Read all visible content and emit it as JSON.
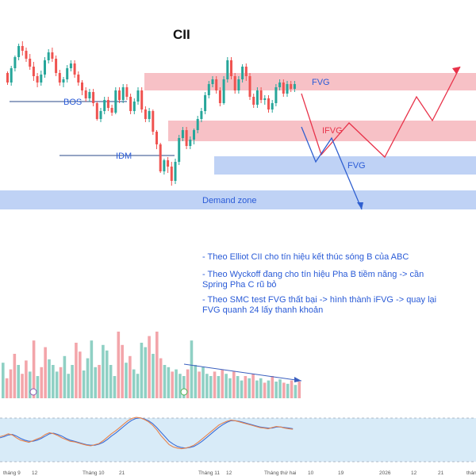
{
  "chart_data": {
    "type": "candlestick",
    "title": "CII",
    "colors": {
      "up": "#26a69a",
      "down": "#ef5350",
      "fvg_fill": "#f6b6bc",
      "demand_fill": "#b8cdf4",
      "annotation": "#2a5bd7",
      "wave": "#e8334a",
      "projection": "#2f5fd0",
      "k_line": "#e8834a",
      "d_line": "#3a6ed8",
      "oscillator_band": "#d8ebf8"
    },
    "candles": [
      [
        208,
        196,
        210,
        193
      ],
      [
        196,
        214,
        217,
        192
      ],
      [
        214,
        228,
        230,
        210
      ],
      [
        228,
        242,
        245,
        224
      ],
      [
        242,
        236,
        248,
        230
      ],
      [
        236,
        226,
        240,
        222
      ],
      [
        226,
        216,
        232,
        212
      ],
      [
        216,
        204,
        222,
        198
      ],
      [
        204,
        196,
        208,
        190
      ],
      [
        196,
        206,
        211,
        192
      ],
      [
        206,
        224,
        228,
        202
      ],
      [
        224,
        234,
        238,
        220
      ],
      [
        234,
        226,
        240,
        222
      ],
      [
        226,
        208,
        230,
        204
      ],
      [
        208,
        196,
        212,
        192
      ],
      [
        196,
        200,
        203,
        190
      ],
      [
        200,
        214,
        218,
        196
      ],
      [
        214,
        220,
        224,
        210
      ],
      [
        220,
        206,
        224,
        202
      ],
      [
        206,
        196,
        210,
        192
      ],
      [
        196,
        186,
        199,
        180
      ],
      [
        186,
        176,
        190,
        172
      ],
      [
        176,
        184,
        188,
        172
      ],
      [
        184,
        170,
        188,
        166
      ],
      [
        170,
        150,
        172,
        148
      ],
      [
        150,
        160,
        164,
        146
      ],
      [
        160,
        174,
        178,
        156
      ],
      [
        174,
        164,
        178,
        160
      ],
      [
        164,
        158,
        168,
        154
      ],
      [
        158,
        186,
        190,
        156
      ],
      [
        186,
        174,
        190,
        170
      ],
      [
        174,
        190,
        194,
        170
      ],
      [
        190,
        178,
        194,
        174
      ],
      [
        178,
        160,
        182,
        156
      ],
      [
        160,
        172,
        176,
        156
      ],
      [
        172,
        186,
        190,
        168
      ],
      [
        186,
        162,
        190,
        158
      ],
      [
        162,
        150,
        166,
        146
      ],
      [
        150,
        160,
        164,
        146
      ],
      [
        160,
        134,
        162,
        130
      ],
      [
        134,
        118,
        136,
        112
      ],
      [
        118,
        84,
        120,
        82
      ],
      [
        84,
        98,
        100,
        80
      ],
      [
        98,
        90,
        102,
        82
      ],
      [
        90,
        72,
        96,
        66
      ],
      [
        72,
        96,
        100,
        68
      ],
      [
        96,
        126,
        130,
        92
      ],
      [
        126,
        136,
        140,
        122
      ],
      [
        136,
        116,
        140,
        112
      ],
      [
        116,
        124,
        128,
        112
      ],
      [
        124,
        136,
        138,
        118
      ],
      [
        136,
        150,
        154,
        132
      ],
      [
        150,
        160,
        164,
        146
      ],
      [
        160,
        180,
        184,
        156
      ],
      [
        180,
        194,
        198,
        176
      ],
      [
        194,
        200,
        204,
        190
      ],
      [
        200,
        186,
        204,
        182
      ],
      [
        186,
        170,
        190,
        166
      ],
      [
        170,
        200,
        204,
        168
      ],
      [
        200,
        224,
        228,
        196
      ],
      [
        224,
        204,
        228,
        200
      ],
      [
        204,
        186,
        208,
        182
      ],
      [
        186,
        200,
        204,
        182
      ],
      [
        200,
        216,
        219,
        196
      ],
      [
        216,
        204,
        220,
        198
      ],
      [
        204,
        178,
        208,
        174
      ],
      [
        178,
        168,
        182,
        164
      ],
      [
        168,
        186,
        190,
        164
      ],
      [
        186,
        174,
        190,
        170
      ],
      [
        174,
        176,
        180,
        168
      ],
      [
        176,
        162,
        180,
        158
      ],
      [
        162,
        170,
        174,
        158
      ],
      [
        170,
        190,
        194,
        166
      ],
      [
        190,
        196,
        200,
        186
      ],
      [
        196,
        182,
        200,
        178
      ],
      [
        182,
        194,
        198,
        178
      ],
      [
        194,
        188,
        198,
        184
      ],
      [
        188,
        194,
        198,
        184
      ]
    ],
    "volume": [
      [
        320,
        "up"
      ],
      [
        180,
        "down"
      ],
      [
        260,
        "down"
      ],
      [
        400,
        "down"
      ],
      [
        300,
        "up"
      ],
      [
        220,
        "down"
      ],
      [
        340,
        "down"
      ],
      [
        240,
        "up"
      ],
      [
        520,
        "down"
      ],
      [
        200,
        "up"
      ],
      [
        280,
        "down"
      ],
      [
        460,
        "down"
      ],
      [
        350,
        "up"
      ],
      [
        300,
        "up"
      ],
      [
        240,
        "up"
      ],
      [
        280,
        "down"
      ],
      [
        380,
        "up"
      ],
      [
        220,
        "up"
      ],
      [
        300,
        "up"
      ],
      [
        500,
        "down"
      ],
      [
        420,
        "down"
      ],
      [
        250,
        "up"
      ],
      [
        360,
        "up"
      ],
      [
        520,
        "up"
      ],
      [
        280,
        "up"
      ],
      [
        300,
        "down"
      ],
      [
        480,
        "up"
      ],
      [
        430,
        "up"
      ],
      [
        300,
        "up"
      ],
      [
        200,
        "up"
      ],
      [
        600,
        "down"
      ],
      [
        480,
        "down"
      ],
      [
        320,
        "up"
      ],
      [
        380,
        "down"
      ],
      [
        260,
        "up"
      ],
      [
        220,
        "up"
      ],
      [
        500,
        "up"
      ],
      [
        460,
        "up"
      ],
      [
        560,
        "down"
      ],
      [
        400,
        "up"
      ],
      [
        600,
        "down"
      ],
      [
        360,
        "down"
      ],
      [
        300,
        "up"
      ],
      [
        280,
        "up"
      ],
      [
        240,
        "down"
      ],
      [
        260,
        "up"
      ],
      [
        220,
        "up"
      ],
      [
        200,
        "up"
      ],
      [
        260,
        "down"
      ],
      [
        520,
        "up"
      ],
      [
        300,
        "up"
      ],
      [
        240,
        "down"
      ],
      [
        280,
        "up"
      ],
      [
        220,
        "up"
      ],
      [
        200,
        "up"
      ],
      [
        240,
        "down"
      ],
      [
        200,
        "up"
      ],
      [
        260,
        "down"
      ],
      [
        220,
        "up"
      ],
      [
        180,
        "up"
      ],
      [
        240,
        "down"
      ],
      [
        200,
        "up"
      ],
      [
        160,
        "up"
      ],
      [
        200,
        "down"
      ],
      [
        180,
        "up"
      ],
      [
        220,
        "down"
      ],
      [
        160,
        "up"
      ],
      [
        180,
        "up"
      ],
      [
        140,
        "down"
      ],
      [
        160,
        "up"
      ],
      [
        200,
        "down"
      ],
      [
        150,
        "up"
      ],
      [
        170,
        "up"
      ],
      [
        140,
        "down"
      ],
      [
        130,
        "up"
      ],
      [
        160,
        "down"
      ],
      [
        120,
        "up"
      ],
      [
        150,
        "down"
      ]
    ],
    "oscillator": {
      "k": [
        48,
        50,
        53,
        51,
        46,
        42,
        40,
        38,
        41,
        44,
        47,
        52,
        55,
        53,
        50,
        46,
        43,
        40,
        39,
        37,
        35,
        33,
        32,
        34,
        36,
        41,
        47,
        53,
        58,
        64,
        70,
        76,
        80,
        82,
        81,
        78,
        74,
        68,
        60,
        50,
        42,
        34,
        30,
        28,
        27,
        28,
        30,
        33,
        38,
        44,
        50,
        56,
        62,
        68,
        72,
        75,
        77,
        76,
        74,
        72,
        70,
        68,
        66,
        64,
        63,
        62,
        64,
        66,
        65,
        63,
        62,
        61
      ],
      "d": [
        46,
        48,
        51,
        52,
        49,
        45,
        42,
        40,
        40,
        42,
        45,
        49,
        53,
        54,
        52,
        49,
        45,
        42,
        40,
        38,
        36,
        34,
        33,
        33,
        35,
        38,
        43,
        49,
        54,
        60,
        66,
        72,
        77,
        80,
        81,
        79,
        76,
        71,
        64,
        56,
        48,
        40,
        35,
        31,
        29,
        28,
        29,
        31,
        35,
        40,
        46,
        52,
        58,
        64,
        69,
        73,
        76,
        76,
        75,
        73,
        71,
        69,
        67,
        65,
        64,
        63,
        63,
        65,
        65,
        64,
        63,
        62
      ]
    },
    "annotations": {
      "bos": "BOS",
      "idm": "IDM",
      "fvg_top": "FVG",
      "ifvg": "IFVG",
      "fvg_mid": "FVG",
      "demand": "Demand zone"
    },
    "x_ticks": [
      "tháng 9",
      "12",
      "Tháng 10",
      "21",
      "Tháng 11",
      "12",
      "Tháng thứ hai",
      "10",
      "19",
      "2026",
      "12",
      "21",
      "tháng"
    ],
    "notes": [
      "- Theo Elliot CII cho tín hiệu kết thúc sóng B của ABC",
      "- Theo Wyckoff đang cho tín hiệu Pha B tiềm năng -> cần\nSpring Pha C rũ bỏ",
      "- Theo SMC test FVG thất bại -> hình thành iFVG -> quay lại\nFVG quanh 24 lấy thanh khoản"
    ]
  }
}
